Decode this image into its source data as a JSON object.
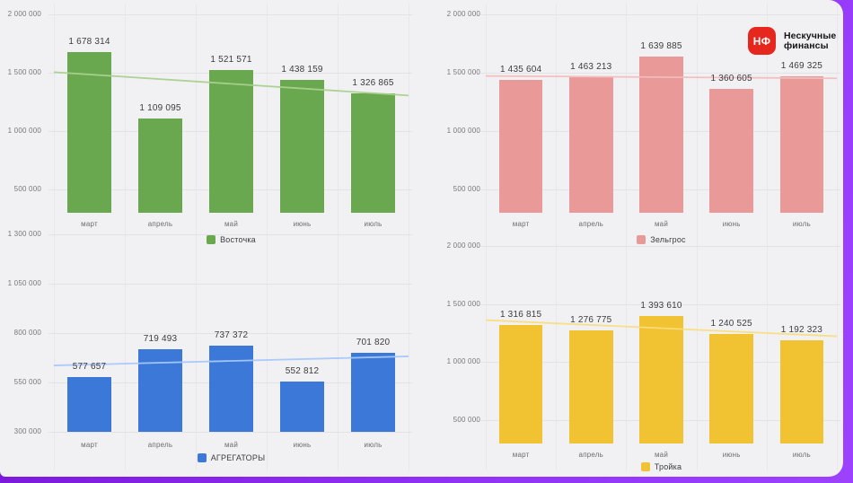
{
  "logo": {
    "icon_text": "НФ",
    "brand_line1": "Нескучные",
    "brand_line2": "финансы",
    "icon_color": "#e6271d"
  },
  "colors": {
    "background": "#f1f1f4",
    "frame_purple": "#8f2ff3",
    "gridline": "#e2e2e7",
    "axis_text": "#77777b",
    "value_text": "#3c3c40"
  },
  "chart_data": [
    {
      "type": "bar",
      "legend": "Восточка",
      "legend_position": "bottom",
      "color": "#6aa84f",
      "trend_color": "#a9d08e",
      "categories": [
        "март",
        "апрель",
        "май",
        "июнь",
        "июль"
      ],
      "values": [
        1678314,
        1109095,
        1521571,
        1438159,
        1326865
      ],
      "value_labels": [
        "1 678 314",
        "1 109 095",
        "1 521 571",
        "1 438 159",
        "1 326 865"
      ],
      "ymin": 300000,
      "ymax": 2000000,
      "grid": true,
      "y_ticks": [
        {
          "value": 2000000,
          "label": "2 000 000"
        },
        {
          "value": 1500000,
          "label": "1 500 000"
        },
        {
          "value": 1000000,
          "label": "1 000 000"
        },
        {
          "value": 500000,
          "label": "500 000"
        }
      ],
      "trendline": {
        "start_value": 1505000,
        "end_value": 1305000
      }
    },
    {
      "type": "bar",
      "legend": "Зельгрос",
      "legend_position": "bottom",
      "color": "#ea9999",
      "trend_color": "#f3bcbc",
      "categories": [
        "март",
        "апрель",
        "май",
        "июнь",
        "июль"
      ],
      "values": [
        1435604,
        1463213,
        1639885,
        1360605,
        1469325
      ],
      "value_labels": [
        "1 435 604",
        "1 463 213",
        "1 639 885",
        "1 360 605",
        "1 469 325"
      ],
      "ymin": 300000,
      "ymax": 2000000,
      "grid": true,
      "y_ticks": [
        {
          "value": 2000000,
          "label": "2 000 000"
        },
        {
          "value": 1500000,
          "label": "1 500 000"
        },
        {
          "value": 1000000,
          "label": "1 000 000"
        },
        {
          "value": 500000,
          "label": "500 000"
        }
      ],
      "trendline": {
        "start_value": 1472000,
        "end_value": 1452000
      }
    },
    {
      "type": "bar",
      "legend": "АГРЕГАТОРЫ",
      "legend_position": "bottom",
      "color": "#3c78d8",
      "trend_color": "#a8c7fa",
      "categories": [
        "март",
        "апрель",
        "май",
        "июнь",
        "июль"
      ],
      "values": [
        577657,
        719493,
        737372,
        552812,
        701820
      ],
      "value_labels": [
        "577 657",
        "719 493",
        "737 372",
        "552 812",
        "701 820"
      ],
      "ymin": 300000,
      "ymax": 1300000,
      "grid": true,
      "y_ticks": [
        {
          "value": 1300000,
          "label": "1 300 000"
        },
        {
          "value": 1050000,
          "label": "1 050 000"
        },
        {
          "value": 800000,
          "label": "800 000"
        },
        {
          "value": 550000,
          "label": "550 000"
        },
        {
          "value": 300000,
          "label": "300 000"
        }
      ],
      "trendline": {
        "start_value": 636000,
        "end_value": 682000
      }
    },
    {
      "type": "bar",
      "legend": "Тройка",
      "legend_position": "bottom",
      "color": "#f1c232",
      "trend_color": "#f8dd7e",
      "categories": [
        "март",
        "апрель",
        "май",
        "июнь",
        "июль"
      ],
      "values": [
        1316815,
        1276775,
        1393610,
        1240525,
        1192323
      ],
      "value_labels": [
        "1 316 815",
        "1 276 775",
        "1 393 610",
        "1 240 525",
        "1 192 323"
      ],
      "ymin": 300000,
      "ymax": 2000000,
      "grid": true,
      "y_ticks": [
        {
          "value": 2000000,
          "label": "2 000 000"
        },
        {
          "value": 1500000,
          "label": "1 500 000"
        },
        {
          "value": 1000000,
          "label": "1 000 000"
        },
        {
          "value": 500000,
          "label": "500 000"
        }
      ],
      "trendline": {
        "start_value": 1362000,
        "end_value": 1223000
      }
    }
  ]
}
